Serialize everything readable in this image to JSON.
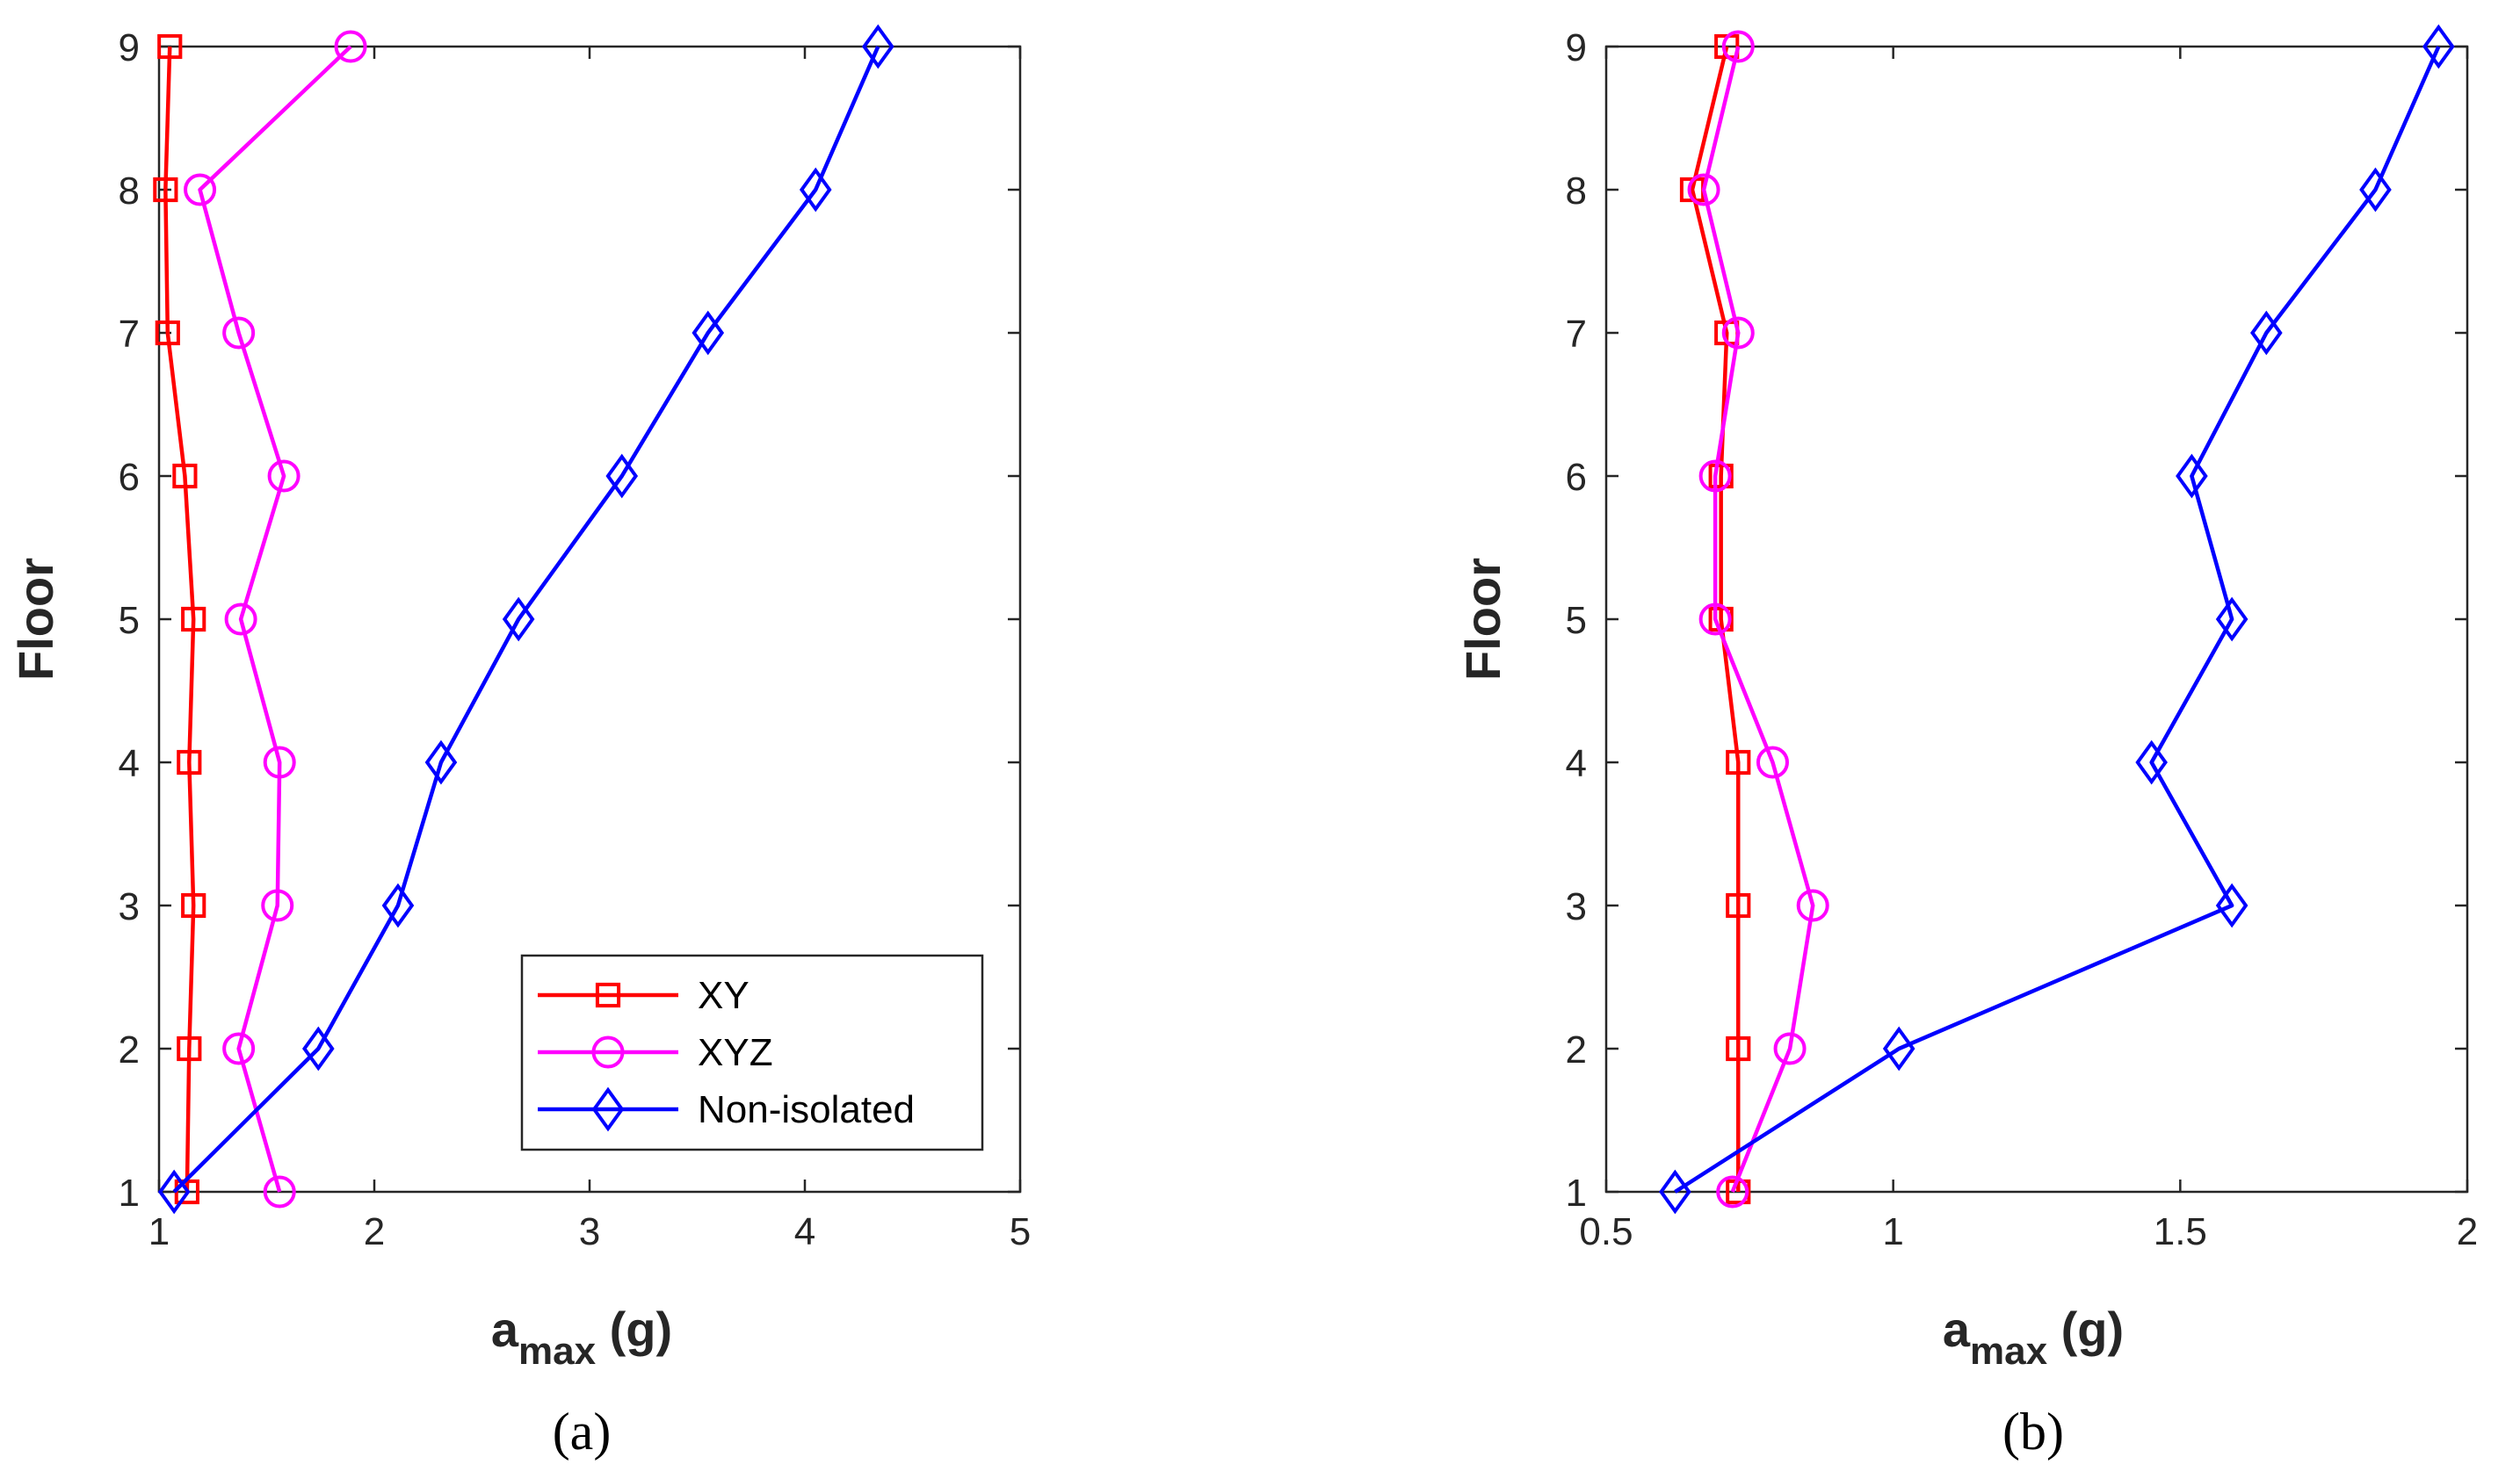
{
  "colors": {
    "XY": "#ff0000",
    "XYZ": "#ff00ff",
    "Non-isolated": "#0000ff",
    "axis": "#262626"
  },
  "chart_data": [
    {
      "type": "line",
      "panel_label": "(a)",
      "xlabel_main": "a",
      "xlabel_sub": "max",
      "xlabel_unit": " (g)",
      "ylabel": "Floor",
      "xlim": [
        1,
        5
      ],
      "ylim": [
        1,
        9
      ],
      "xticks": [
        1,
        2,
        3,
        4,
        5
      ],
      "xtick_labels": [
        "1",
        "2",
        "3",
        "4",
        "5"
      ],
      "yticks": [
        1,
        2,
        3,
        4,
        5,
        6,
        7,
        8,
        9
      ],
      "ytick_labels": [
        "1",
        "2",
        "3",
        "4",
        "5",
        "6",
        "7",
        "8",
        "9"
      ],
      "grid": false,
      "legend": {
        "show": true,
        "placement": "bottom-right"
      },
      "series": [
        {
          "name": "XY",
          "marker": "square",
          "y": [
            1,
            2,
            3,
            4,
            5,
            6,
            7,
            8,
            9
          ],
          "x": [
            1.13,
            1.14,
            1.16,
            1.14,
            1.16,
            1.12,
            1.04,
            1.03,
            1.05
          ]
        },
        {
          "name": "XYZ",
          "marker": "circle",
          "y": [
            1,
            2,
            3,
            4,
            5,
            6,
            7,
            8,
            9
          ],
          "x": [
            1.56,
            1.37,
            1.55,
            1.56,
            1.38,
            1.58,
            1.37,
            1.19,
            1.89
          ]
        },
        {
          "name": "Non-isolated",
          "marker": "diamond",
          "y": [
            1,
            2,
            3,
            4,
            5,
            6,
            7,
            8,
            9
          ],
          "x": [
            1.07,
            1.74,
            2.11,
            2.31,
            2.67,
            3.15,
            3.55,
            4.05,
            4.34
          ]
        }
      ]
    },
    {
      "type": "line",
      "panel_label": "(b)",
      "xlabel_main": "a",
      "xlabel_sub": "max",
      "xlabel_unit": " (g)",
      "ylabel": "Floor",
      "xlim": [
        0.5,
        2
      ],
      "ylim": [
        1,
        9
      ],
      "xticks": [
        0.5,
        1,
        1.5,
        2
      ],
      "xtick_labels": [
        "0.5",
        "1",
        "1.5",
        "2"
      ],
      "yticks": [
        1,
        2,
        3,
        4,
        5,
        6,
        7,
        8,
        9
      ],
      "ytick_labels": [
        "1",
        "2",
        "3",
        "4",
        "5",
        "6",
        "7",
        "8",
        "9"
      ],
      "grid": false,
      "legend": {
        "show": false
      },
      "series": [
        {
          "name": "XY",
          "marker": "square",
          "y": [
            1,
            2,
            3,
            4,
            5,
            6,
            7,
            8,
            9
          ],
          "x": [
            0.73,
            0.73,
            0.73,
            0.73,
            0.7,
            0.7,
            0.71,
            0.65,
            0.71
          ]
        },
        {
          "name": "XYZ",
          "marker": "circle",
          "y": [
            1,
            2,
            3,
            4,
            5,
            6,
            7,
            8,
            9
          ],
          "x": [
            0.72,
            0.82,
            0.86,
            0.79,
            0.69,
            0.69,
            0.73,
            0.67,
            0.73
          ]
        },
        {
          "name": "Non-isolated",
          "marker": "diamond",
          "y": [
            1,
            2,
            3,
            4,
            5,
            6,
            7,
            8,
            9
          ],
          "x": [
            0.62,
            1.01,
            1.59,
            1.45,
            1.59,
            1.52,
            1.65,
            1.84,
            1.95
          ]
        }
      ]
    }
  ]
}
